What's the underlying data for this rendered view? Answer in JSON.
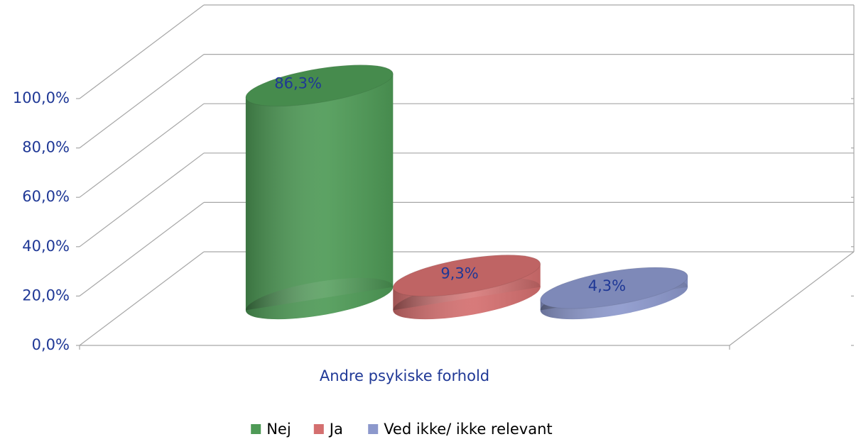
{
  "chart_data": {
    "type": "bar3d",
    "categories": [
      "Andre psykiske forhold"
    ],
    "series": [
      {
        "name": "Nej",
        "color": "#4e9a56",
        "values": [
          86.3
        ],
        "value_labels": [
          "86,3%"
        ]
      },
      {
        "name": "Ja",
        "color": "#d46f6f",
        "values": [
          9.3
        ],
        "value_labels": [
          "9,3%"
        ]
      },
      {
        "name": "Ved ikke/ ikke relevant",
        "color": "#8c98cc",
        "values": [
          4.3
        ],
        "value_labels": [
          "4,3%"
        ]
      }
    ],
    "ylim": [
      0,
      100
    ],
    "yticks": [
      {
        "value": 0,
        "label": "0,0%"
      },
      {
        "value": 20,
        "label": "20,0%"
      },
      {
        "value": 40,
        "label": "40,0%"
      },
      {
        "value": 60,
        "label": "60,0%"
      },
      {
        "value": 80,
        "label": "80,0%"
      },
      {
        "value": 100,
        "label": "100,0%"
      }
    ],
    "grid": true,
    "legend": "bottom"
  }
}
